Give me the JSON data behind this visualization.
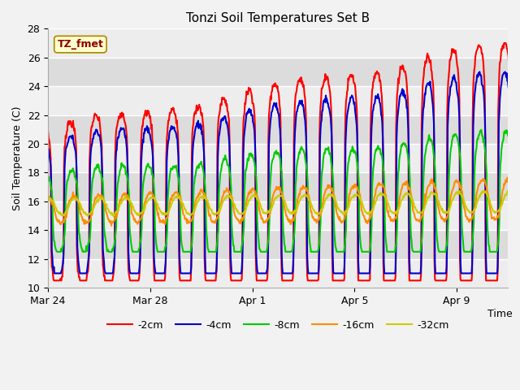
{
  "title": "Tonzi Soil Temperatures Set B",
  "xlabel": "Time",
  "ylabel": "Soil Temperature (C)",
  "ylim": [
    10,
    28
  ],
  "annotation": "TZ_fmet",
  "annotation_color": "#8B0000",
  "annotation_bg": "#FFFFCC",
  "series": [
    "-2cm",
    "-4cm",
    "-8cm",
    "-16cm",
    "-32cm"
  ],
  "colors": [
    "#FF0000",
    "#0000CD",
    "#00CC00",
    "#FF8C00",
    "#CCCC00"
  ],
  "xtick_positions": [
    0,
    4,
    8,
    12,
    16
  ],
  "xtick_labels": [
    "Mar 24",
    "Mar 28",
    "Apr 1",
    "Apr 5",
    "Apr 9"
  ],
  "ytick_positions": [
    10,
    12,
    14,
    16,
    18,
    20,
    22,
    24,
    26,
    28
  ],
  "ytick_labels": [
    "10",
    "12",
    "14",
    "16",
    "18",
    "20",
    "22",
    "24",
    "26",
    "28"
  ],
  "linewidth": 1.5,
  "fig_bg": "#F2F2F2",
  "plot_bg": "#DCDCDC"
}
